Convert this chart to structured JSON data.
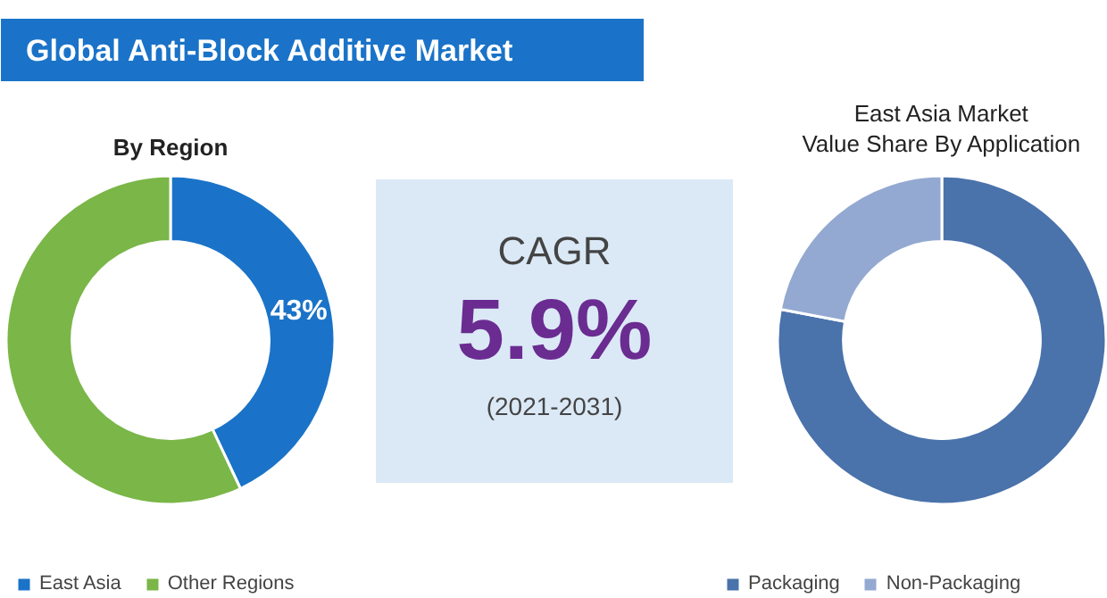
{
  "chart_data": [
    {
      "type": "donut",
      "title": "Global Anti-Block Additive Market",
      "subtitle": "By Region",
      "categories": [
        "East Asia",
        "Other Regions"
      ],
      "values": [
        43,
        57
      ],
      "colors": [
        "#1a73c8",
        "#7ab648"
      ],
      "value_labels": [
        "43%",
        null
      ],
      "legend": "bottom"
    },
    {
      "type": "other",
      "annotations": [
        "CAGR",
        "5.9%",
        "(2021-2031)"
      ]
    },
    {
      "type": "donut",
      "title": "East Asia Market Value Share By Application",
      "categories": [
        "Packaging",
        "Non-Packaging"
      ],
      "values": [
        78,
        22
      ],
      "colors": [
        "#4a72ab",
        "#93a9d1"
      ],
      "legend": "bottom"
    }
  ]
}
